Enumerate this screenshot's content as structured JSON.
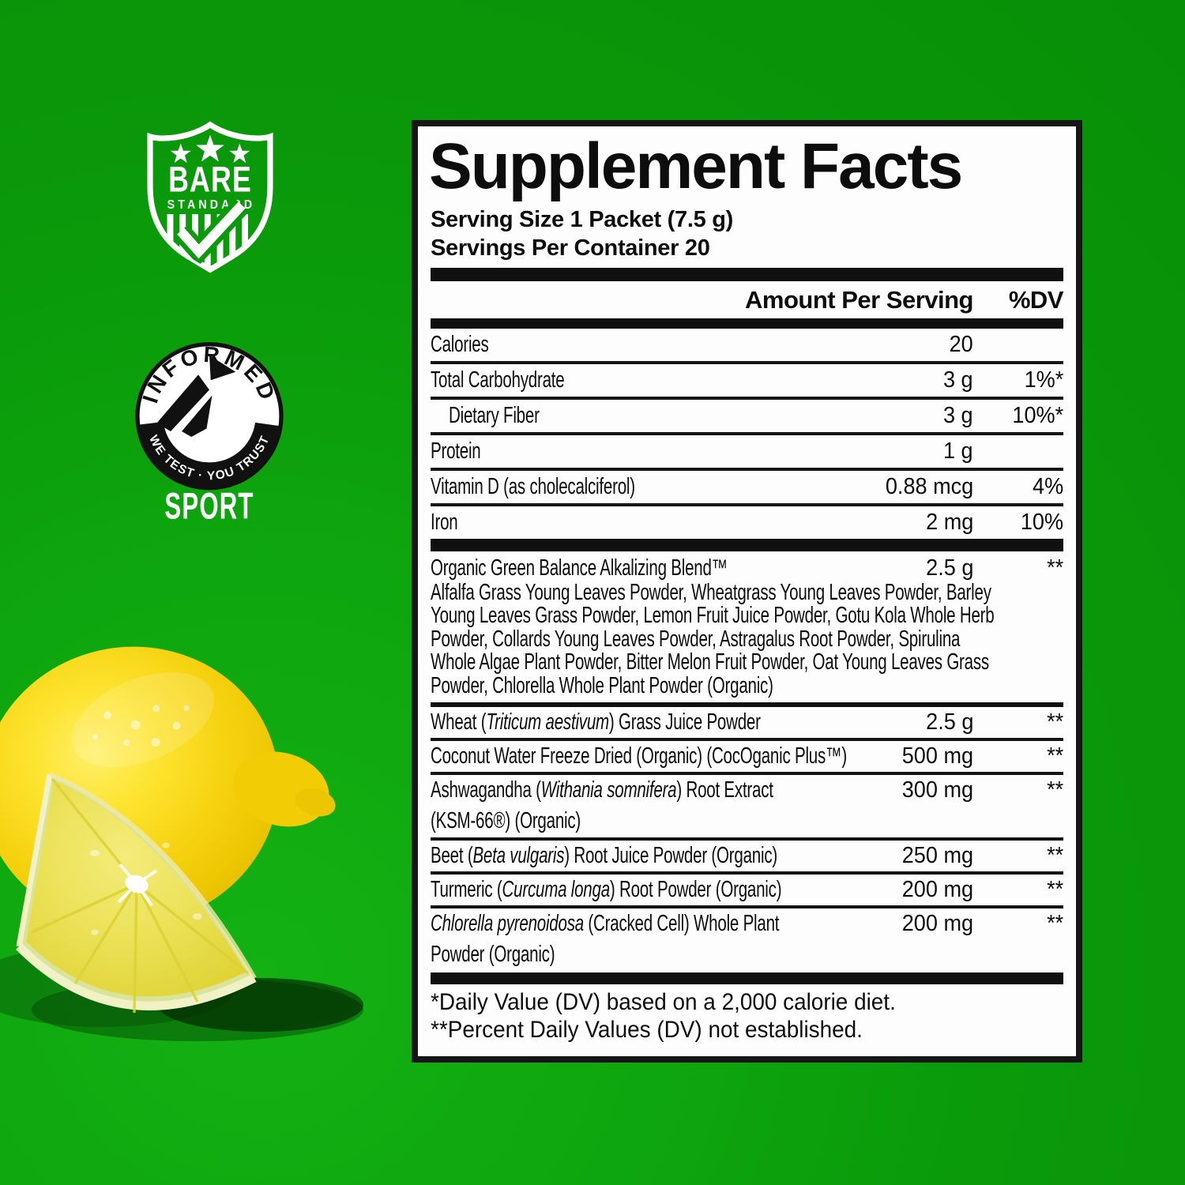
{
  "colors": {
    "background_green": "#0a9a0a",
    "label_border": "#161616",
    "label_text": "#0d0d0d",
    "bar_black": "#101010",
    "lemon_yellow": "#f6d312",
    "badge_white": "#ffffff"
  },
  "badges": {
    "bare_standard": {
      "line1": "BARE",
      "line2": "STANDARD"
    },
    "informed_sport": {
      "arc_top": "INFORMED",
      "arc_bottom": "WE TEST · YOU TRUST",
      "caption": "SPORT"
    }
  },
  "label": {
    "title": "Supplement Facts",
    "serving_size": "Serving Size 1 Packet (7.5 g)",
    "servings_per_container": "Servings Per Container 20",
    "columns": {
      "amount": "Amount Per Serving",
      "dv": "%DV"
    },
    "nutrients": [
      {
        "name": [
          {
            "t": "Calories"
          }
        ],
        "amount": "20",
        "dv": ""
      },
      {
        "name": [
          {
            "t": "Total Carbohydrate"
          }
        ],
        "amount": "3 g",
        "dv": "1%*"
      },
      {
        "name": [
          {
            "t": "Dietary Fiber"
          }
        ],
        "amount": "3 g",
        "dv": "10%*",
        "indent": true
      },
      {
        "name": [
          {
            "t": "Protein"
          }
        ],
        "amount": "1 g",
        "dv": ""
      },
      {
        "name": [
          {
            "t": "Vitamin D (as cholecalciferol)"
          }
        ],
        "amount": "0.88 mcg",
        "dv": "4%"
      },
      {
        "name": [
          {
            "t": "Iron"
          }
        ],
        "amount": "2 mg",
        "dv": "10%"
      }
    ],
    "blend": {
      "name": "Organic Green Balance Alkalizing Blend™",
      "amount": "2.5 g",
      "dv": "**",
      "description": "Alfalfa Grass Young Leaves Powder, Wheatgrass Young Leaves Powder, Barley Young Leaves Grass Powder, Lemon Fruit Juice Powder, Gotu Kola Whole Herb Powder, Collards Young Leaves Powder, Astragalus Root Powder, Spirulina Whole Algae Plant Powder, Bitter Melon Fruit Powder, Oat Young Leaves Grass Powder, Chlorella Whole Plant Powder (Organic)"
    },
    "ingredients": [
      {
        "lines": [
          [
            {
              "t": "Wheat ("
            },
            {
              "t": "Triticum aestivum",
              "i": true
            },
            {
              "t": ") Grass Juice Powder"
            }
          ]
        ],
        "amount": "2.5 g",
        "dv": "**"
      },
      {
        "lines": [
          [
            {
              "t": "Coconut Water Freeze Dried (Organic) (CocOganic Plus™)"
            }
          ]
        ],
        "amount": "500 mg",
        "dv": "**"
      },
      {
        "lines": [
          [
            {
              "t": "Ashwagandha ("
            },
            {
              "t": "Withania somnifera",
              "i": true
            },
            {
              "t": ") Root Extract"
            }
          ],
          [
            {
              "t": "(KSM-66®) (Organic)"
            }
          ]
        ],
        "amount": "300 mg",
        "dv": "**"
      },
      {
        "lines": [
          [
            {
              "t": "Beet ("
            },
            {
              "t": "Beta vulgaris",
              "i": true
            },
            {
              "t": ") Root Juice Powder (Organic)"
            }
          ]
        ],
        "amount": "250 mg",
        "dv": "**"
      },
      {
        "lines": [
          [
            {
              "t": "Turmeric ("
            },
            {
              "t": "Curcuma longa",
              "i": true
            },
            {
              "t": ") Root Powder (Organic)"
            }
          ]
        ],
        "amount": "200 mg",
        "dv": "**"
      },
      {
        "lines": [
          [
            {
              "t": "Chlorella pyrenoidosa",
              "i": true
            },
            {
              "t": " (Cracked Cell) Whole Plant"
            }
          ],
          [
            {
              "t": "Powder (Organic)"
            }
          ]
        ],
        "amount": "200 mg",
        "dv": "**"
      }
    ],
    "footnotes": [
      "*Daily Value (DV) based on a 2,000 calorie diet.",
      "**Percent Daily Values (DV) not established."
    ]
  }
}
